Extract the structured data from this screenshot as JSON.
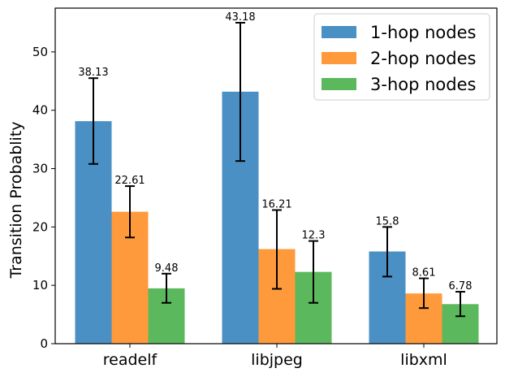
{
  "chart_data": {
    "type": "bar",
    "title": "",
    "xlabel": "",
    "ylabel": "Transition Probablity",
    "categories": [
      "readelf",
      "libjpeg",
      "libxml"
    ],
    "ylim": [
      0,
      57.5
    ],
    "yticks": [
      0,
      10,
      20,
      30,
      40,
      50
    ],
    "grid": false,
    "legend_position": "top-right",
    "series": [
      {
        "name": "1-hop nodes",
        "color": "#4a90c4",
        "values": [
          38.13,
          43.18,
          15.8
        ],
        "labels": [
          "38.13",
          "43.18",
          "15.8"
        ],
        "error_low": [
          30.8,
          31.3,
          11.5
        ],
        "error_high": [
          45.5,
          55.0,
          20.0
        ]
      },
      {
        "name": "2-hop nodes",
        "color": "#ff9a3c",
        "values": [
          22.61,
          16.21,
          8.61
        ],
        "labels": [
          "22.61",
          "16.21",
          "8.61"
        ],
        "error_low": [
          18.2,
          9.4,
          6.1
        ],
        "error_high": [
          27.0,
          22.9,
          11.2
        ]
      },
      {
        "name": "3-hop nodes",
        "color": "#5cb85c",
        "values": [
          9.48,
          12.3,
          6.78
        ],
        "labels": [
          "9.48",
          "12.3",
          "6.78"
        ],
        "error_low": [
          7.0,
          7.0,
          4.7
        ],
        "error_high": [
          12.0,
          17.6,
          8.9
        ]
      }
    ]
  }
}
